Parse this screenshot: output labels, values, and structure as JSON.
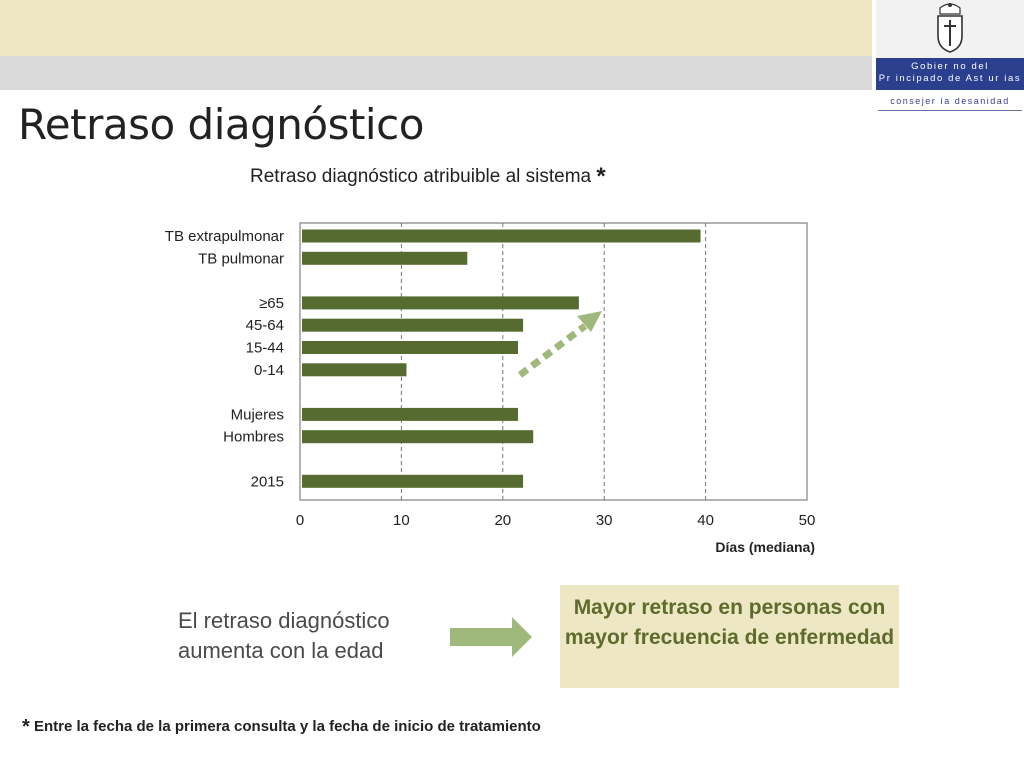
{
  "header": {
    "gov_line1": "Gobier no del",
    "gov_line2": "Pr incipado de Ast ur ias",
    "consejeria": "consejer ía desanidad"
  },
  "slide": {
    "title": "Retraso diagnóstico",
    "conclusion": "El retraso diagnóstico aumenta con la edad",
    "highlight": "Mayor retraso en personas con mayor frecuencia de enfermedad",
    "footnote_star": "*",
    "footnote_text": "Entre la fecha de la primera consulta y la fecha de inicio de tratamiento"
  },
  "colors": {
    "bar": "#556b2f",
    "band": "#ede7c4",
    "arrow": "#9fb87c",
    "gov_box": "#2b3f8f"
  },
  "chart_data": {
    "type": "bar",
    "orientation": "horizontal",
    "title": "Retraso diagnóstico atribuible al sistema",
    "title_mark": "*",
    "xlabel": "Días (mediana)",
    "xlim": [
      0,
      50
    ],
    "xticks": [
      0,
      10,
      20,
      30,
      40,
      50
    ],
    "grid": "vertical dashed",
    "groups": [
      {
        "categories": [
          "TB extrapulmonar",
          "TB pulmonar"
        ],
        "values": [
          39.5,
          16.5
        ]
      },
      {
        "categories": [
          "≥65",
          "45-64",
          "15-44",
          "0-14"
        ],
        "values": [
          27.5,
          22,
          21.5,
          10.5
        ]
      },
      {
        "categories": [
          "Mujeres",
          "Hombres"
        ],
        "values": [
          21.5,
          23
        ]
      },
      {
        "categories": [
          "2015"
        ],
        "values": [
          22
        ]
      }
    ]
  }
}
